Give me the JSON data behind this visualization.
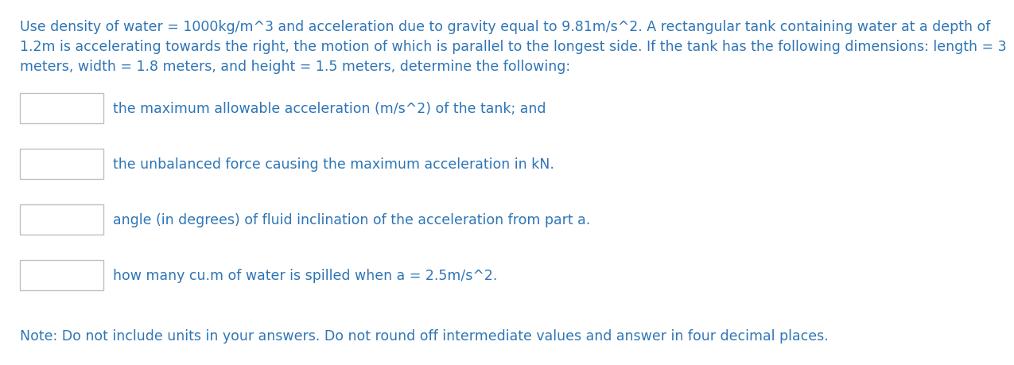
{
  "background_color": "#ffffff",
  "text_color": "#2e75b6",
  "header_text": "Use density of water = 1000kg/m^3 and acceleration due to gravity equal to 9.81m/s^2. A rectangular tank containing water at a depth of\n1.2m is accelerating towards the right, the motion of which is parallel to the longest side. If the tank has the following dimensions: length = 3\nmeters, width = 1.8 meters, and height = 1.5 meters, determine the following:",
  "questions": [
    "the maximum allowable acceleration (m/s^2) of the tank; and",
    "the unbalanced force causing the maximum acceleration in kN.",
    "angle (in degrees) of fluid inclination of the acceleration from part a.",
    "how many cu.m of water is spilled when a = 2.5m/s^2."
  ],
  "note_text": "Note: Do not include units in your answers. Do not round off intermediate values and answer in four decimal places.",
  "box_edge_color": "#c0c0c0",
  "box_face_color": "#ffffff",
  "header_fontsize": 12.5,
  "question_fontsize": 12.5,
  "note_fontsize": 12.5
}
